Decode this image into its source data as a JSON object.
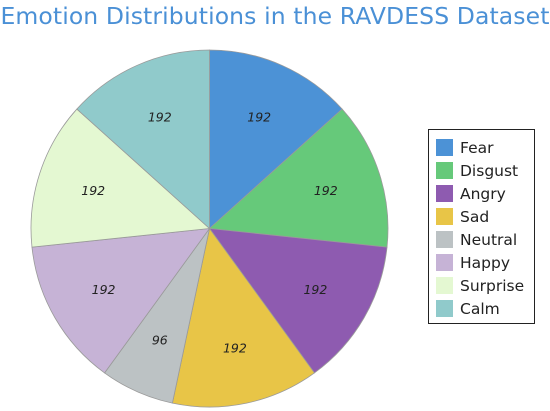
{
  "chart_data": {
    "type": "pie",
    "title": "Emotion Distributions in the RAVDESS Dataset",
    "categories": [
      "Fear",
      "Disgust",
      "Angry",
      "Sad",
      "Neutral",
      "Happy",
      "Surprise",
      "Calm"
    ],
    "values": [
      192,
      192,
      192,
      192,
      96,
      192,
      192,
      192
    ],
    "colors": [
      "#4c92d6",
      "#66c97a",
      "#8e5bb0",
      "#e8c547",
      "#bcc2c4",
      "#c6b3d6",
      "#e4f8d2",
      "#90cacb"
    ],
    "legend_position": "right",
    "data_labels": true,
    "start_angle": "top",
    "direction": "clockwise"
  }
}
